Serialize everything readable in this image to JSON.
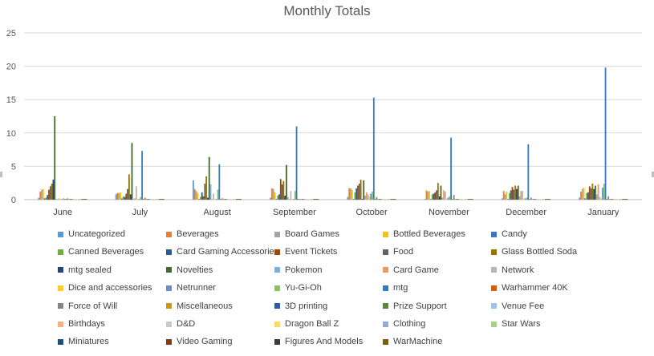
{
  "chart_data": {
    "type": "bar",
    "title": "Monthly Totals",
    "xlabel": "",
    "ylabel": "",
    "ylim": [
      0,
      25
    ],
    "yticks": [
      0,
      5,
      10,
      15,
      20,
      25
    ],
    "grid": true,
    "legend_position": "bottom",
    "categories": [
      "June",
      "July",
      "August",
      "September",
      "October",
      "November",
      "December",
      "January"
    ],
    "series": [
      {
        "name": "Uncategorized",
        "color": "#5b9bd5",
        "values": [
          0.3,
          0.8,
          2.9,
          0.3,
          0.4,
          0.1,
          0.2,
          0.3
        ]
      },
      {
        "name": "Beverages",
        "color": "#ed7d31",
        "values": [
          1.2,
          1.0,
          1.6,
          1.7,
          1.7,
          1.4,
          1.3,
          1.2
        ]
      },
      {
        "name": "Board Games",
        "color": "#a5a5a5",
        "values": [
          1.5,
          1.0,
          1.3,
          1.6,
          1.7,
          1.2,
          0.8,
          1.6
        ]
      },
      {
        "name": "Bottled Beverages",
        "color": "#ffc000",
        "values": [
          1.6,
          1.1,
          1.0,
          1.1,
          1.5,
          1.3,
          1.2,
          1.8
        ]
      },
      {
        "name": "Candy",
        "color": "#4472c4",
        "values": [
          0.2,
          0.2,
          0.1,
          0.1,
          0.1,
          0.1,
          0.1,
          0.2
        ]
      },
      {
        "name": "Canned Beverages",
        "color": "#70ad47",
        "values": [
          0.3,
          0.5,
          0.4,
          0.6,
          1.1,
          0.8,
          1.0,
          1.0
        ]
      },
      {
        "name": "Card Gaming Accessories",
        "color": "#255e91",
        "values": [
          0.7,
          0.4,
          1.1,
          0.8,
          1.7,
          0.9,
          1.4,
          1.1
        ]
      },
      {
        "name": "Event Tickets",
        "color": "#9e480e",
        "values": [
          1.5,
          0.9,
          0.5,
          3.1,
          2.1,
          1.1,
          1.9,
          2.0
        ]
      },
      {
        "name": "Food",
        "color": "#636363",
        "values": [
          2.0,
          1.6,
          2.4,
          2.3,
          2.4,
          1.4,
          1.5,
          1.7
        ]
      },
      {
        "name": "Glass Bottled Soda",
        "color": "#997300",
        "values": [
          2.4,
          3.8,
          3.5,
          2.8,
          3.0,
          2.5,
          2.1,
          2.4
        ]
      },
      {
        "name": "mtg sealed",
        "color": "#264478",
        "values": [
          3.0,
          0.8,
          0.3,
          0.6,
          0.1,
          0.5,
          1.6,
          1.6
        ]
      },
      {
        "name": "Novelties",
        "color": "#43682b",
        "values": [
          12.5,
          8.5,
          6.4,
          5.2,
          2.9,
          2.1,
          2.1,
          2.1
        ]
      },
      {
        "name": "Pokemon",
        "color": "#7cafdd",
        "values": [
          0.1,
          0.1,
          2.3,
          0.4,
          0.6,
          0.3,
          0.5,
          0.8
        ]
      },
      {
        "name": "Card Game",
        "color": "#f1975a",
        "values": [
          0.1,
          0.2,
          0.1,
          0.1,
          1.1,
          1.4,
          1.3,
          2.3
        ]
      },
      {
        "name": "Network",
        "color": "#b7b7b7",
        "values": [
          0.2,
          2.0,
          0.9,
          1.3,
          0.8,
          1.2,
          1.3,
          0.4
        ]
      },
      {
        "name": "Dice and accessories",
        "color": "#ffcd33",
        "values": [
          0.1,
          0.1,
          0.1,
          0.1,
          0.5,
          0.1,
          0.2,
          0.2
        ]
      },
      {
        "name": "Netrunner",
        "color": "#698ed0",
        "values": [
          0.1,
          0.1,
          0.1,
          0.1,
          0.9,
          0.3,
          0.2,
          1.8
        ]
      },
      {
        "name": "Yu-Gi-Oh",
        "color": "#8cc168",
        "values": [
          0.2,
          0.4,
          1.5,
          1.3,
          1.2,
          0.5,
          0.3,
          2.4
        ]
      },
      {
        "name": "mtg",
        "color": "#327dc2",
        "values": [
          0.1,
          7.3,
          5.3,
          11.0,
          15.3,
          9.3,
          8.3,
          19.8
        ]
      },
      {
        "name": "Warhammer 40K",
        "color": "#d26012",
        "values": [
          0.1,
          0.1,
          0.1,
          0.1,
          0.1,
          0.1,
          0.1,
          0.1
        ]
      },
      {
        "name": "Force of Will",
        "color": "#848484",
        "values": [
          0.2,
          0.3,
          0.2,
          0.1,
          0.4,
          0.7,
          0.3,
          0.5
        ]
      },
      {
        "name": "Miscellaneous",
        "color": "#cc9a00",
        "values": [
          0.1,
          0.1,
          0.1,
          0.1,
          0.1,
          0.1,
          0.1,
          0.1
        ]
      },
      {
        "name": "3D printing",
        "color": "#335aa1",
        "values": [
          0.1,
          0.1,
          0.1,
          0.1,
          0.1,
          0.1,
          0.1,
          0.1
        ]
      },
      {
        "name": "Prize Support",
        "color": "#5a8a39",
        "values": [
          0.1,
          0.1,
          0.1,
          0.1,
          0.1,
          0.1,
          0.1,
          0.1
        ]
      },
      {
        "name": "Venue Fee",
        "color": "#9dc3e6",
        "values": [
          0.1,
          0.1,
          0.1,
          0.1,
          0.1,
          0.1,
          0.1,
          0.1
        ]
      },
      {
        "name": "Birthdays",
        "color": "#f4b183",
        "values": [
          0.1,
          0.1,
          0.1,
          0.1,
          0.1,
          0.1,
          0.1,
          0.1
        ]
      },
      {
        "name": "D&D",
        "color": "#c9c9c9",
        "values": [
          0.1,
          0.1,
          0.1,
          0.1,
          0.1,
          0.1,
          0.1,
          0.1
        ]
      },
      {
        "name": "Dragon Ball Z",
        "color": "#ffd966",
        "values": [
          0.1,
          0.1,
          0.1,
          0.1,
          0.1,
          0.1,
          0.1,
          0.1
        ]
      },
      {
        "name": "Clothing",
        "color": "#8faadc",
        "values": [
          0.1,
          0.1,
          0.1,
          0.1,
          0.1,
          0.1,
          0.1,
          0.1
        ]
      },
      {
        "name": "Star Wars",
        "color": "#a9d18e",
        "values": [
          0.1,
          0.1,
          0.1,
          0.1,
          0.1,
          0.1,
          0.1,
          0.1
        ]
      },
      {
        "name": "Miniatures",
        "color": "#1f4e79",
        "values": [
          0.1,
          0.1,
          0.1,
          0.1,
          0.1,
          0.1,
          0.1,
          0.1
        ]
      },
      {
        "name": "Video Gaming",
        "color": "#843c0c",
        "values": [
          0.1,
          0.1,
          0.1,
          0.1,
          0.1,
          0.1,
          0.1,
          0.1
        ]
      },
      {
        "name": "Figures And Models",
        "color": "#3a3a3a",
        "values": [
          0.1,
          0.1,
          0.1,
          0.1,
          0.1,
          0.1,
          0.1,
          0.1
        ]
      },
      {
        "name": "WarMachine",
        "color": "#7f6000",
        "values": [
          0.1,
          0.1,
          0.1,
          0.1,
          0.1,
          0.1,
          0.1,
          0.1
        ]
      }
    ]
  }
}
